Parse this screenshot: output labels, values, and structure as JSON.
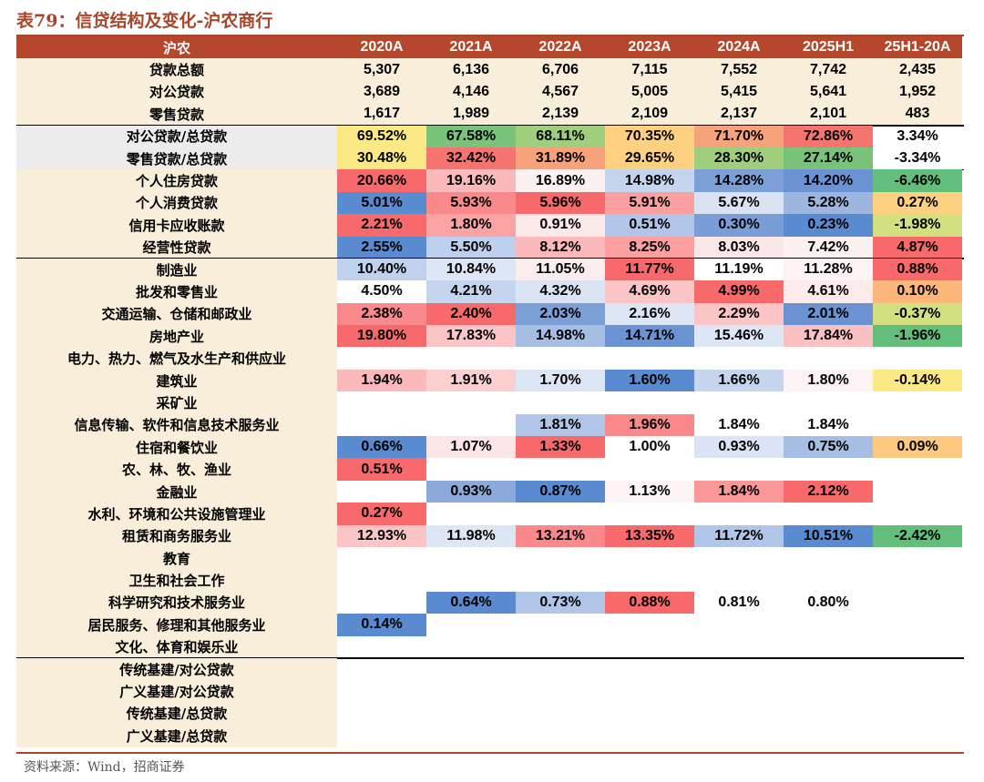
{
  "title": "表79：信贷结构及变化-沪农商行",
  "source": "资料来源：Wind，招商证券",
  "header": {
    "label": "沪农",
    "columns": [
      "2020A",
      "2021A",
      "2022A",
      "2023A",
      "2024A",
      "2025H1",
      "25H1-20A"
    ]
  },
  "rows": [
    {
      "label": "贷款总额",
      "section": "sec1",
      "values": [
        "5,307",
        "6,136",
        "6,706",
        "7,115",
        "7,552",
        "7,742",
        "2,435"
      ],
      "colors": [
        "",
        "",
        "",
        "",
        "",
        "",
        ""
      ]
    },
    {
      "label": "对公贷款",
      "section": "sec1",
      "values": [
        "3,689",
        "4,146",
        "4,567",
        "5,005",
        "5,415",
        "5,641",
        "1,952"
      ],
      "colors": [
        "",
        "",
        "",
        "",
        "",
        "",
        ""
      ]
    },
    {
      "label": "零售贷款",
      "section": "sec1",
      "values": [
        "1,617",
        "1,989",
        "2,139",
        "2,109",
        "2,137",
        "2,101",
        "483"
      ],
      "colors": [
        "",
        "",
        "",
        "",
        "",
        "",
        ""
      ],
      "divider": true
    },
    {
      "label": "对公贷款/总贷款",
      "section": "sec2",
      "values": [
        "69.52%",
        "67.58%",
        "68.11%",
        "70.35%",
        "71.70%",
        "72.86%",
        "3.34%"
      ],
      "colors": [
        "#fbe985",
        "#78c27a",
        "#9fce7d",
        "#fdd17f",
        "#f8a27b",
        "#f57470",
        ""
      ]
    },
    {
      "label": "零售贷款/总贷款",
      "section": "sec2",
      "values": [
        "30.48%",
        "32.42%",
        "31.89%",
        "29.65%",
        "28.30%",
        "27.14%",
        "-3.34%"
      ],
      "colors": [
        "#fbe985",
        "#f57470",
        "#f8a27b",
        "#fdd17f",
        "#9fce7d",
        "#78c27a",
        ""
      ],
      "divider": true
    },
    {
      "label": "个人住房贷款",
      "section": "sec3",
      "values": [
        "20.66%",
        "19.16%",
        "16.89%",
        "14.98%",
        "14.28%",
        "14.20%",
        "-6.46%"
      ],
      "colors": [
        "#f8696b",
        "#fbb9bb",
        "#fdf0f1",
        "#c5d5ee",
        "#7d9fd8",
        "#6b93d3",
        "#63be7b"
      ]
    },
    {
      "label": "个人消费贷款",
      "section": "sec3",
      "values": [
        "5.01%",
        "5.93%",
        "5.96%",
        "5.91%",
        "5.67%",
        "5.28%",
        "0.27%"
      ],
      "colors": [
        "#5a8ad0",
        "#f9898b",
        "#f8696b",
        "#fb9fa1",
        "#d9e3f4",
        "#9cb6e0",
        "#fdd17f"
      ]
    },
    {
      "label": "信用卡应收账款",
      "section": "sec3",
      "values": [
        "2.21%",
        "1.80%",
        "0.91%",
        "0.51%",
        "0.30%",
        "0.23%",
        "-1.98%"
      ],
      "colors": [
        "#f8696b",
        "#f9a3a5",
        "#fbe9ea",
        "#b0c5e8",
        "#7a9dd8",
        "#5a8ad0",
        "#d3e07f"
      ]
    },
    {
      "label": "经营性贷款",
      "section": "sec3",
      "values": [
        "2.55%",
        "5.50%",
        "8.12%",
        "8.25%",
        "8.03%",
        "7.42%",
        "4.87%"
      ],
      "colors": [
        "#5a8ad0",
        "#bfd0ee",
        "#fbb9bb",
        "#fb9fa1",
        "#fbe6e8",
        "#fcf0f1",
        "#f8696b"
      ],
      "divider": true
    },
    {
      "label": "制造业",
      "section": "sec3",
      "values": [
        "10.40%",
        "10.84%",
        "11.05%",
        "11.77%",
        "11.19%",
        "11.28%",
        "0.88%"
      ],
      "colors": [
        "#c0d1ee",
        "#dde6f5",
        "#fbeced",
        "#f8696b",
        "#ffffff",
        "#fdf3f4",
        "#f8696b"
      ]
    },
    {
      "label": "批发和零售业",
      "section": "sec3",
      "values": [
        "4.50%",
        "4.21%",
        "4.32%",
        "4.69%",
        "4.99%",
        "4.61%",
        "0.10%"
      ],
      "colors": [
        "#ffffff",
        "#c5d5ee",
        "#dbe4f5",
        "#fbc4c6",
        "#f8696b",
        "#fdeaeb",
        "#fdb77b"
      ]
    },
    {
      "label": "交通运输、仓储和邮政业",
      "section": "sec3",
      "values": [
        "2.38%",
        "2.40%",
        "2.03%",
        "2.16%",
        "2.29%",
        "2.01%",
        "-0.37%"
      ],
      "colors": [
        "#f9898b",
        "#f8696b",
        "#7d9fd8",
        "#dde6f5",
        "#fbc4c6",
        "#6b93d3",
        "#d3e07f"
      ]
    },
    {
      "label": "房地产业",
      "section": "sec3",
      "values": [
        "19.80%",
        "17.83%",
        "14.98%",
        "14.71%",
        "15.46%",
        "17.84%",
        "-1.96%"
      ],
      "colors": [
        "#f8696b",
        "#fbc4c6",
        "#a6bde4",
        "#6b93d3",
        "#dde6f5",
        "#fbc0c2",
        "#63be7b"
      ]
    },
    {
      "label": "电力、热力、燃气及水生产和供应业",
      "section": "sec3",
      "values": [
        "",
        "",
        "",
        "",
        "",
        "",
        ""
      ],
      "colors": [
        "",
        "",
        "",
        "",
        "",
        "",
        ""
      ]
    },
    {
      "label": "建筑业",
      "section": "sec3",
      "values": [
        "1.94%",
        "1.91%",
        "1.70%",
        "1.60%",
        "1.66%",
        "1.80%",
        "-0.14%"
      ],
      "colors": [
        "#fbb9bb",
        "#fccfd0",
        "#dde6f5",
        "#5a8ad0",
        "#c5d5ee",
        "#fdf3f4",
        "#fbe985"
      ]
    },
    {
      "label": "采矿业",
      "section": "sec3",
      "values": [
        "",
        "",
        "",
        "",
        "",
        "",
        ""
      ],
      "colors": [
        "",
        "",
        "",
        "",
        "",
        "",
        ""
      ]
    },
    {
      "label": "信息传输、软件和信息技术服务业",
      "section": "sec3",
      "values": [
        "",
        "",
        "1.81%",
        "1.96%",
        "1.84%",
        "1.84%",
        ""
      ],
      "colors": [
        "",
        "",
        "#b0c5e8",
        "#f9898b",
        "#ffffff",
        "#ffffff",
        ""
      ]
    },
    {
      "label": "住宿和餐饮业",
      "section": "sec3",
      "values": [
        "0.66%",
        "1.07%",
        "1.33%",
        "1.00%",
        "0.93%",
        "0.75%",
        "0.09%"
      ],
      "colors": [
        "#5a8ad0",
        "#fde6e7",
        "#f8696b",
        "#ffffff",
        "#dbe4f5",
        "#a6bde4",
        "#fdc97f"
      ]
    },
    {
      "label": "农、林、牧、渔业",
      "section": "sec3",
      "values": [
        "0.51%",
        "",
        "",
        "",
        "",
        "",
        ""
      ],
      "colors": [
        "#f8696b",
        "",
        "",
        "",
        "",
        "",
        ""
      ]
    },
    {
      "label": "金融业",
      "section": "sec3",
      "values": [
        "",
        "0.93%",
        "0.87%",
        "1.13%",
        "1.84%",
        "2.12%",
        ""
      ],
      "colors": [
        "",
        "#8caad9",
        "#5a8ad0",
        "#fdf3f4",
        "#f99799",
        "#f8696b",
        ""
      ]
    },
    {
      "label": "水利、环境和公共设施管理业",
      "section": "sec3",
      "values": [
        "0.27%",
        "",
        "",
        "",
        "",
        "",
        ""
      ],
      "colors": [
        "#f8696b",
        "",
        "",
        "",
        "",
        "",
        ""
      ]
    },
    {
      "label": "租赁和商务服务业",
      "section": "sec3",
      "values": [
        "12.93%",
        "11.98%",
        "13.21%",
        "13.35%",
        "11.72%",
        "10.51%",
        "-2.42%"
      ],
      "colors": [
        "#fbc4c6",
        "#dde6f5",
        "#f9898b",
        "#f8696b",
        "#b0c5e8",
        "#5a8ad0",
        "#63be7b"
      ]
    },
    {
      "label": "教育",
      "section": "sec3",
      "values": [
        "",
        "",
        "",
        "",
        "",
        "",
        ""
      ],
      "colors": [
        "",
        "",
        "",
        "",
        "",
        "",
        ""
      ]
    },
    {
      "label": "卫生和社会工作",
      "section": "sec3",
      "values": [
        "",
        "",
        "",
        "",
        "",
        "",
        ""
      ],
      "colors": [
        "",
        "",
        "",
        "",
        "",
        "",
        ""
      ]
    },
    {
      "label": "科学研究和技术服务业",
      "section": "sec3",
      "values": [
        "",
        "0.64%",
        "0.73%",
        "0.88%",
        "0.81%",
        "0.80%",
        ""
      ],
      "colors": [
        "",
        "#5a8ad0",
        "#b0c5e8",
        "#f8696b",
        "#ffffff",
        "#ffffff",
        ""
      ]
    },
    {
      "label": "居民服务、修理和其他服务业",
      "section": "sec3",
      "values": [
        "0.14%",
        "",
        "",
        "",
        "",
        "",
        ""
      ],
      "colors": [
        "#5a8ad0",
        "",
        "",
        "",
        "",
        "",
        ""
      ]
    },
    {
      "label": "文化、体育和娱乐业",
      "section": "sec3",
      "values": [
        "",
        "",
        "",
        "",
        "",
        "",
        ""
      ],
      "colors": [
        "",
        "",
        "",
        "",
        "",
        "",
        ""
      ],
      "divider": true
    },
    {
      "label": "传统基建/对公贷款",
      "section": "sec3",
      "values": [
        "",
        "",
        "",
        "",
        "",
        "",
        ""
      ],
      "colors": [
        "",
        "",
        "",
        "",
        "",
        "",
        ""
      ]
    },
    {
      "label": "广义基建/对公贷款",
      "section": "sec3",
      "values": [
        "",
        "",
        "",
        "",
        "",
        "",
        ""
      ],
      "colors": [
        "",
        "",
        "",
        "",
        "",
        "",
        ""
      ]
    },
    {
      "label": "传统基建/总贷款",
      "section": "sec3",
      "values": [
        "",
        "",
        "",
        "",
        "",
        "",
        ""
      ],
      "colors": [
        "",
        "",
        "",
        "",
        "",
        "",
        ""
      ]
    },
    {
      "label": "广义基建/总贷款",
      "section": "sec3",
      "values": [
        "",
        "",
        "",
        "",
        "",
        "",
        ""
      ],
      "colors": [
        "",
        "",
        "",
        "",
        "",
        "",
        ""
      ]
    }
  ]
}
